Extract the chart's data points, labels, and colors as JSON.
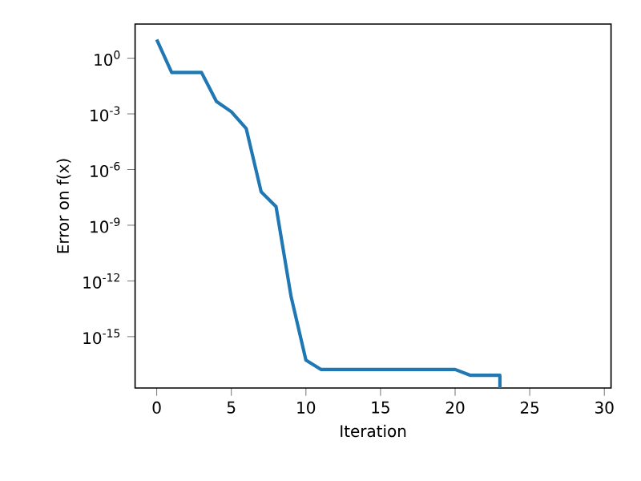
{
  "chart_data": {
    "type": "line",
    "xlabel": "Iteration",
    "ylabel": "Error on f(x)",
    "log": "y",
    "color": "#1f77b4",
    "x": [
      0,
      1,
      2,
      3,
      4,
      5,
      6,
      7,
      8,
      9,
      10,
      11,
      12,
      13,
      14,
      15,
      16,
      17,
      18,
      19,
      20,
      21,
      22,
      23,
      23
    ],
    "values": [
      10,
      0.17,
      0.17,
      0.17,
      0.0047,
      0.0013,
      0.00016,
      6.3e-08,
      1e-08,
      1.5e-13,
      5.4e-17,
      1.7e-17,
      1.7e-17,
      1.7e-17,
      1.7e-17,
      1.7e-17,
      1.7e-17,
      1.7e-17,
      1.7e-17,
      1.7e-17,
      1.7e-17,
      8.3e-18,
      8.3e-18,
      8.3e-18,
      1.7e-18
    ],
    "xlim": [
      -1.45,
      30.45
    ],
    "ylim": [
      1.7e-18,
      69
    ],
    "xticks": [
      0,
      5,
      10,
      15,
      20,
      25,
      30
    ],
    "yticks": [
      {
        "value": 1,
        "label": "10$^{0}$"
      },
      {
        "value": 0.001,
        "label": "10$^{-3}$"
      },
      {
        "value": 1e-06,
        "label": "10$^{-6}$"
      },
      {
        "value": 1e-09,
        "label": "10$^{-9}$"
      },
      {
        "value": 1e-12,
        "label": "10$^{-12}$"
      },
      {
        "value": 1e-15,
        "label": "10$^{-15}$"
      }
    ],
    "grid": false,
    "marker": "none",
    "line_style": "solid"
  }
}
